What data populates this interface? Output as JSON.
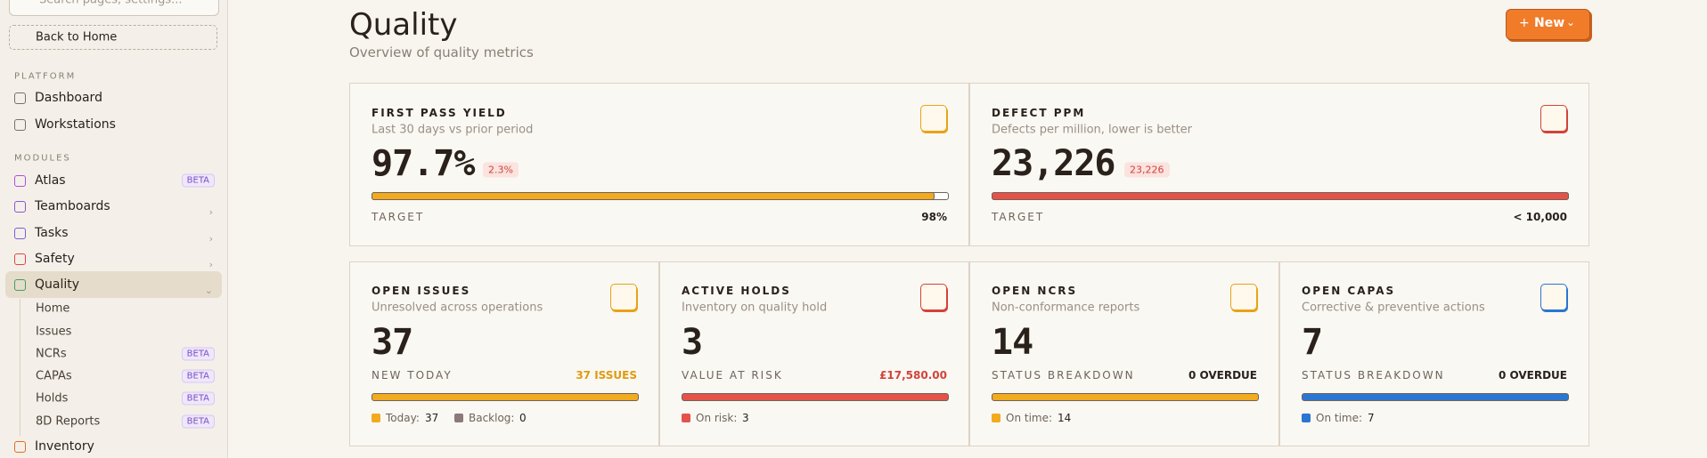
{
  "sidebar": {
    "search_placeholder": "Search pages, settings...",
    "back": "Back to Home",
    "sections": [
      {
        "heading": "PLATFORM",
        "items": [
          {
            "label": "Dashboard"
          },
          {
            "label": "Workstations"
          }
        ]
      },
      {
        "heading": "MODULES",
        "items": [
          {
            "label": "Atlas",
            "badge": "BETA"
          },
          {
            "label": "Teamboards"
          },
          {
            "label": "Tasks"
          },
          {
            "label": "Safety"
          },
          {
            "label": "Quality",
            "children": [
              {
                "label": "Home"
              },
              {
                "label": "Issues"
              },
              {
                "label": "NCRs",
                "badge": "BETA"
              },
              {
                "label": "CAPAs",
                "badge": "BETA"
              },
              {
                "label": "Holds",
                "badge": "BETA"
              },
              {
                "label": "8D Reports",
                "badge": "BETA"
              }
            ]
          },
          {
            "label": "Inventory"
          }
        ]
      }
    ]
  },
  "header": {
    "title": "Quality",
    "subtitle": "Overview of quality metrics",
    "button": "New"
  },
  "cards": {
    "top": [
      {
        "label": "FIRST PASS YIELD",
        "description": "Last 30 days vs prior period",
        "value": "97.7%",
        "change": "2.3%",
        "footer_label": "TARGET",
        "footer_value": "98%"
      },
      {
        "label": "DEFECT PPM",
        "description": "Defects per million, lower is better",
        "value": "23,226",
        "change": "23,226",
        "footer_label": "TARGET",
        "footer_value": "< 10,000"
      }
    ],
    "bottom": [
      {
        "label": "OPEN ISSUES",
        "description": "Unresolved across operations",
        "value": "37",
        "footer_label": "NEW TODAY",
        "footer_value": "37 ISSUES",
        "legend": [
          {
            "label": "Today:",
            "value": "37"
          },
          {
            "label": "Backlog:",
            "value": "0"
          }
        ]
      },
      {
        "label": "ACTIVE HOLDS",
        "description": "Inventory on quality hold",
        "value": "3",
        "footer_label": "VALUE AT RISK",
        "footer_value": "£17,580.00",
        "legend": [
          {
            "label": "On risk:",
            "value": "3"
          }
        ]
      },
      {
        "label": "OPEN NCRS",
        "description": "Non-conformance reports",
        "value": "14",
        "footer_label": "STATUS BREAKDOWN",
        "footer_value": "0 OVERDUE",
        "legend": [
          {
            "label": "On time:",
            "value": "14"
          }
        ]
      },
      {
        "label": "OPEN CAPAS",
        "description": "Corrective & preventive actions",
        "value": "7",
        "footer_label": "STATUS BREAKDOWN",
        "footer_value": "0 OVERDUE",
        "legend": [
          {
            "label": "On time:",
            "value": "7"
          }
        ]
      }
    ]
  }
}
